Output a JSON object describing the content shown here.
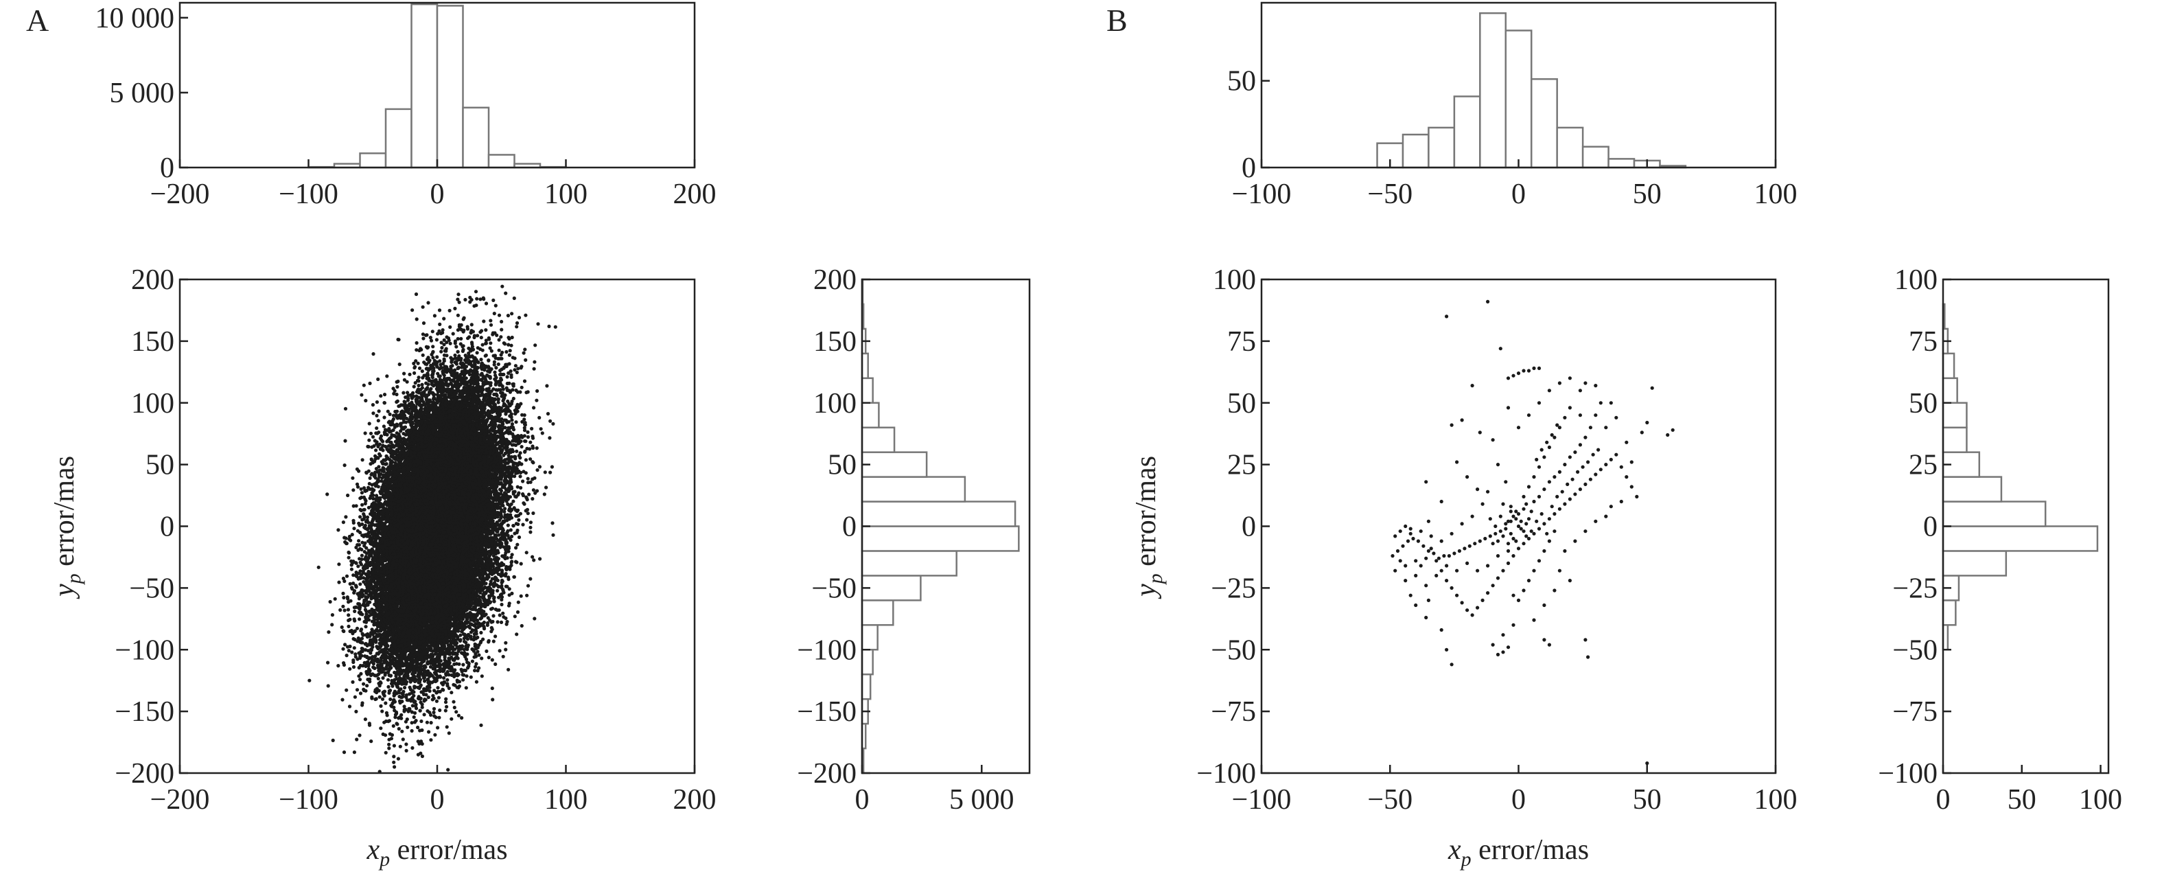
{
  "colors": {
    "points": "#1a1a1a",
    "bars_edge": "#777777",
    "bars_fill": "#ffffff",
    "axes": "#222222"
  },
  "chart_data": [
    {
      "panel_label": "A",
      "type": "scatter",
      "title": "",
      "xlabel": "x",
      "xlabel_sub": "p",
      "xlabel_rest": " error/mas",
      "ylabel": "y",
      "ylabel_sub": "p",
      "ylabel_rest": " error/mas",
      "xlim": [
        -200,
        200
      ],
      "ylim": [
        -200,
        200
      ],
      "xticks": [
        -200,
        -100,
        0,
        100,
        200
      ],
      "xtick_labels": [
        "−200",
        "−100",
        "0",
        "100",
        "200"
      ],
      "yticks": [
        -200,
        -150,
        -100,
        -50,
        0,
        50,
        100,
        150,
        200
      ],
      "ytick_labels": [
        "−200",
        "−150",
        "−100",
        "−50",
        "0",
        "50",
        "100",
        "150",
        "200"
      ],
      "point_distribution": {
        "n": 30000,
        "sigma_x": 24,
        "sigma_y": 55,
        "correlation": 0.35
      },
      "x_histogram": {
        "type": "histogram",
        "bin_edges": [
          -100,
          -80,
          -60,
          -40,
          -20,
          0,
          20,
          40,
          60,
          80,
          100
        ],
        "counts": [
          40,
          250,
          950,
          3900,
          10900,
          10800,
          4000,
          850,
          250,
          40
        ],
        "ylim": [
          0,
          11000
        ],
        "yticks": [
          0,
          5000,
          10000
        ],
        "ytick_labels": [
          "0",
          "5 000",
          "10 000"
        ]
      },
      "y_histogram": {
        "type": "histogram",
        "orientation": "horizontal",
        "bin_edges": [
          -200,
          -180,
          -160,
          -140,
          -120,
          -100,
          -80,
          -60,
          -40,
          -20,
          0,
          20,
          40,
          60,
          80,
          100,
          120,
          140,
          160,
          180,
          200
        ],
        "counts": [
          60,
          150,
          250,
          350,
          450,
          650,
          1300,
          2450,
          3950,
          6550,
          6400,
          4300,
          2700,
          1350,
          700,
          450,
          250,
          150,
          60,
          30
        ],
        "xlim": [
          0,
          7000
        ],
        "xticks": [
          0,
          5000
        ],
        "xtick_labels": [
          "0",
          "5 000"
        ]
      }
    },
    {
      "panel_label": "B",
      "type": "scatter",
      "title": "",
      "xlabel": "x",
      "xlabel_sub": "p",
      "xlabel_rest": " error/mas",
      "ylabel": "y",
      "ylabel_sub": "p",
      "ylabel_rest": " error/mas",
      "xlim": [
        -100,
        100
      ],
      "ylim": [
        -100,
        100
      ],
      "xticks": [
        -100,
        -50,
        0,
        50,
        100
      ],
      "xtick_labels": [
        "−100",
        "−50",
        "0",
        "50",
        "100"
      ],
      "yticks": [
        -100,
        -75,
        -50,
        -25,
        0,
        25,
        50,
        75,
        100
      ],
      "ytick_labels": [
        "−100",
        "−75",
        "−50",
        "−25",
        "0",
        "25",
        "50",
        "75",
        "100"
      ],
      "points": [
        [
          -28,
          85
        ],
        [
          -12,
          91
        ],
        [
          -7,
          72
        ],
        [
          0,
          62
        ],
        [
          2,
          63
        ],
        [
          4,
          63
        ],
        [
          6,
          64
        ],
        [
          8,
          64
        ],
        [
          -2,
          61
        ],
        [
          -4,
          60
        ],
        [
          -18,
          57
        ],
        [
          -22,
          43
        ],
        [
          -26,
          41
        ],
        [
          -15,
          38
        ],
        [
          -10,
          35
        ],
        [
          -8,
          25
        ],
        [
          -5,
          18
        ],
        [
          -3,
          8
        ],
        [
          -1,
          3
        ],
        [
          0,
          0
        ],
        [
          1,
          -1
        ],
        [
          2,
          -2
        ],
        [
          3,
          1
        ],
        [
          4,
          3
        ],
        [
          5,
          6
        ],
        [
          6,
          10
        ],
        [
          8,
          12
        ],
        [
          10,
          15
        ],
        [
          12,
          18
        ],
        [
          14,
          20
        ],
        [
          16,
          22
        ],
        [
          18,
          25
        ],
        [
          20,
          28
        ],
        [
          22,
          30
        ],
        [
          24,
          33
        ],
        [
          26,
          36
        ],
        [
          28,
          40
        ],
        [
          30,
          45
        ],
        [
          32,
          50
        ],
        [
          26,
          58
        ],
        [
          24,
          55
        ],
        [
          20,
          48
        ],
        [
          18,
          44
        ],
        [
          16,
          40
        ],
        [
          14,
          36
        ],
        [
          12,
          32
        ],
        [
          10,
          28
        ],
        [
          8,
          24
        ],
        [
          6,
          20
        ],
        [
          4,
          16
        ],
        [
          2,
          12
        ],
        [
          -1,
          6
        ],
        [
          -3,
          2
        ],
        [
          -5,
          -1
        ],
        [
          -7,
          -2
        ],
        [
          -9,
          -3
        ],
        [
          -11,
          -4
        ],
        [
          -13,
          -5
        ],
        [
          -15,
          -6
        ],
        [
          -17,
          -7
        ],
        [
          -19,
          -8
        ],
        [
          -21,
          -9
        ],
        [
          -23,
          -10
        ],
        [
          -25,
          -11
        ],
        [
          -27,
          -12
        ],
        [
          -29,
          -12
        ],
        [
          -31,
          -13
        ],
        [
          -33,
          -11
        ],
        [
          -35,
          -10
        ],
        [
          -37,
          -8
        ],
        [
          -39,
          -6
        ],
        [
          -41,
          -5
        ],
        [
          -43,
          -6
        ],
        [
          -45,
          -8
        ],
        [
          -47,
          -10
        ],
        [
          -49,
          -12
        ],
        [
          -46,
          -2
        ],
        [
          -44,
          0
        ],
        [
          -42,
          -3
        ],
        [
          -40,
          -14
        ],
        [
          -38,
          -16
        ],
        [
          -36,
          -13
        ],
        [
          -34,
          -9
        ],
        [
          -32,
          -14
        ],
        [
          -30,
          -18
        ],
        [
          -28,
          -22
        ],
        [
          -26,
          -25
        ],
        [
          -24,
          -28
        ],
        [
          -22,
          -31
        ],
        [
          -20,
          -34
        ],
        [
          -18,
          -36
        ],
        [
          -16,
          -33
        ],
        [
          -14,
          -30
        ],
        [
          -12,
          -27
        ],
        [
          -10,
          -24
        ],
        [
          -8,
          -21
        ],
        [
          -6,
          -18
        ],
        [
          -4,
          -15
        ],
        [
          -2,
          -12
        ],
        [
          0,
          -9
        ],
        [
          2,
          -7
        ],
        [
          4,
          -5
        ],
        [
          6,
          -3
        ],
        [
          8,
          -1
        ],
        [
          10,
          1
        ],
        [
          12,
          3
        ],
        [
          14,
          5
        ],
        [
          16,
          7
        ],
        [
          18,
          9
        ],
        [
          20,
          11
        ],
        [
          22,
          13
        ],
        [
          24,
          15
        ],
        [
          26,
          17
        ],
        [
          28,
          19
        ],
        [
          30,
          21
        ],
        [
          32,
          23
        ],
        [
          34,
          25
        ],
        [
          36,
          27
        ],
        [
          38,
          29
        ],
        [
          40,
          24
        ],
        [
          42,
          20
        ],
        [
          44,
          16
        ],
        [
          46,
          12
        ],
        [
          48,
          38
        ],
        [
          50,
          42
        ],
        [
          52,
          56
        ],
        [
          58,
          37
        ],
        [
          60,
          39
        ],
        [
          36,
          50
        ],
        [
          30,
          57
        ],
        [
          -42,
          -28
        ],
        [
          -40,
          -32
        ],
        [
          -36,
          -37
        ],
        [
          -30,
          -42
        ],
        [
          -28,
          -50
        ],
        [
          -26,
          -56
        ],
        [
          -44,
          -22
        ],
        [
          -48,
          -18
        ],
        [
          -10,
          -48
        ],
        [
          -8,
          -52
        ],
        [
          -6,
          -51
        ],
        [
          -4,
          -49
        ],
        [
          26,
          -46
        ],
        [
          27,
          -53
        ],
        [
          10,
          -46
        ],
        [
          12,
          -48
        ],
        [
          50,
          -96
        ],
        [
          -2,
          -28
        ],
        [
          0,
          -30
        ],
        [
          2,
          -26
        ],
        [
          4,
          -22
        ],
        [
          6,
          -18
        ],
        [
          8,
          -14
        ],
        [
          10,
          -10
        ],
        [
          12,
          -6
        ],
        [
          14,
          -2
        ],
        [
          -3,
          -3
        ],
        [
          -4,
          2
        ],
        [
          -2,
          -5
        ],
        [
          -5,
          1
        ],
        [
          -6,
          -4
        ],
        [
          -1,
          -6
        ],
        [
          1,
          2
        ],
        [
          -7,
          4
        ],
        [
          -8,
          -6
        ],
        [
          3,
          -4
        ],
        [
          -2,
          4
        ],
        [
          -4,
          -7
        ],
        [
          0,
          5
        ],
        [
          -9,
          0
        ],
        [
          5,
          -2
        ],
        [
          -3,
          6
        ],
        [
          -10,
          -7
        ],
        [
          2,
          7
        ],
        [
          7,
          2
        ],
        [
          -11,
          3
        ],
        [
          3,
          9
        ],
        [
          -6,
          9
        ],
        [
          9,
          5
        ],
        [
          11,
          -3
        ],
        [
          13,
          8
        ],
        [
          15,
          12
        ],
        [
          17,
          14
        ],
        [
          19,
          17
        ],
        [
          21,
          19
        ],
        [
          23,
          22
        ],
        [
          25,
          24
        ],
        [
          27,
          26
        ],
        [
          29,
          29
        ],
        [
          31,
          31
        ],
        [
          7,
          27
        ],
        [
          9,
          31
        ],
        [
          11,
          34
        ],
        [
          13,
          37
        ],
        [
          15,
          41
        ],
        [
          -20,
          20
        ],
        [
          -16,
          15
        ],
        [
          -24,
          26
        ],
        [
          -36,
          18
        ],
        [
          -12,
          14
        ],
        [
          -14,
          9
        ],
        [
          -18,
          4
        ],
        [
          -22,
          1
        ],
        [
          -26,
          -3
        ],
        [
          -30,
          -6
        ],
        [
          -34,
          -4
        ],
        [
          -38,
          -2
        ],
        [
          -42,
          -1
        ],
        [
          -20,
          -15
        ],
        [
          -16,
          -18
        ],
        [
          -12,
          -16
        ],
        [
          -8,
          -12
        ],
        [
          -4,
          -10
        ],
        [
          -24,
          -18
        ],
        [
          -28,
          -16
        ],
        [
          -32,
          -20
        ],
        [
          -36,
          -24
        ],
        [
          -40,
          -20
        ],
        [
          36,
          8
        ],
        [
          40,
          10
        ],
        [
          44,
          26
        ],
        [
          42,
          34
        ],
        [
          38,
          44
        ],
        [
          34,
          40
        ],
        [
          -30,
          10
        ],
        [
          -35,
          2
        ],
        [
          18,
          -10
        ],
        [
          22,
          -6
        ],
        [
          26,
          -2
        ],
        [
          30,
          2
        ],
        [
          34,
          4
        ],
        [
          16,
          -18
        ],
        [
          20,
          -22
        ],
        [
          14,
          -26
        ],
        [
          10,
          -32
        ],
        [
          6,
          -38
        ],
        [
          -2,
          -40
        ],
        [
          -6,
          -44
        ],
        [
          0,
          40
        ],
        [
          4,
          45
        ],
        [
          -4,
          48
        ],
        [
          8,
          50
        ],
        [
          12,
          55
        ],
        [
          16,
          58
        ],
        [
          20,
          60
        ],
        [
          24,
          45
        ],
        [
          -46,
          -14
        ],
        [
          -44,
          -16
        ],
        [
          -48,
          -4
        ],
        [
          -35,
          -30
        ]
      ],
      "x_histogram": {
        "type": "histogram",
        "bin_edges": [
          -55,
          -45,
          -35,
          -25,
          -15,
          -5,
          5,
          15,
          25,
          35,
          45,
          55,
          65
        ],
        "counts": [
          14,
          19,
          23,
          41,
          89,
          79,
          51,
          23,
          12,
          5,
          4,
          1
        ],
        "ylim": [
          0,
          95
        ],
        "yticks": [
          0,
          50
        ],
        "ytick_labels": [
          "0",
          "50"
        ]
      },
      "y_histogram": {
        "type": "histogram",
        "orientation": "horizontal",
        "bin_edges": [
          -100,
          -90,
          -80,
          -70,
          -60,
          -50,
          -40,
          -30,
          -20,
          -10,
          0,
          10,
          20,
          30,
          40,
          50,
          60,
          70,
          80,
          90,
          100
        ],
        "counts": [
          0,
          0,
          0,
          0,
          0,
          3,
          8,
          10,
          40,
          98,
          65,
          37,
          23,
          15,
          15,
          9,
          7,
          3,
          1,
          0
        ],
        "xlim": [
          0,
          105
        ],
        "xticks": [
          0,
          50,
          100
        ],
        "xtick_labels": [
          "0",
          "50",
          "100"
        ]
      }
    }
  ]
}
